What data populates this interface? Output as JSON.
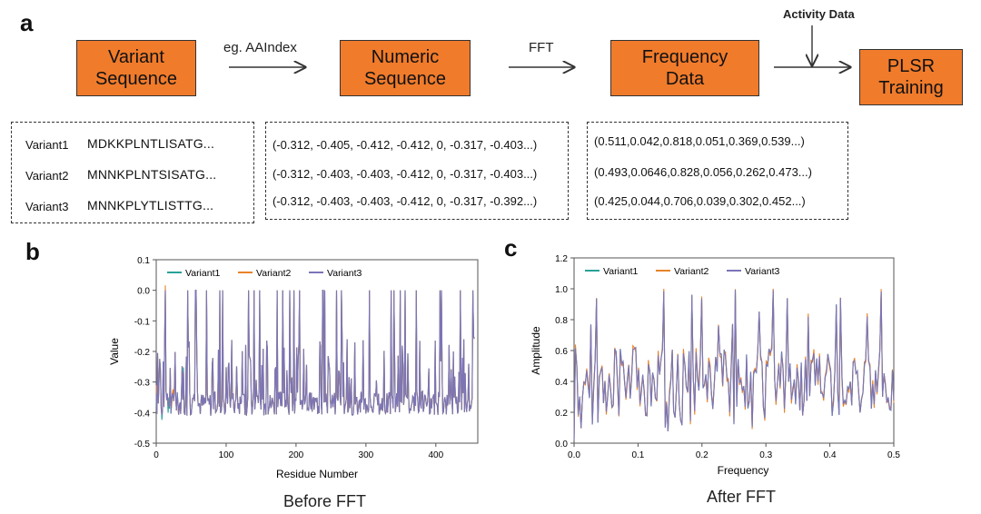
{
  "panels": {
    "a": "a",
    "b": "b",
    "c": "c"
  },
  "flow": {
    "boxes": [
      "Variant\nSequence",
      "Numeric\nSequence",
      "Frequency\nData",
      "PLSR\nTraining"
    ],
    "arrow_labels": [
      "eg. AAIndex",
      "FFT",
      ""
    ],
    "top_label": "Activity Data"
  },
  "sequences": [
    {
      "name": "Variant1",
      "seq": "MDKKPLNTLISATG..."
    },
    {
      "name": "Variant2",
      "seq": "MNNKPLNTSISATG..."
    },
    {
      "name": "Variant3",
      "seq": "MNNKPLYTLISTTG..."
    }
  ],
  "numeric_rows": [
    "(-0.312, -0.405, -0.412, -0.412, 0, -0.317, -0.403...)",
    "(-0.312, -0.403, -0.403, -0.412, 0, -0.317, -0.403...)",
    "(-0.312, -0.403, -0.403, -0.412, 0, -0.317, -0.392...)"
  ],
  "frequency_rows": [
    "(0.511,0.042,0.818,0.051,0.369,0.539...)",
    "(0.493,0.0646,0.828,0.056,0.262,0.473...)",
    "(0.425,0.044,0.706,0.039,0.302,0.452...)"
  ],
  "chart_data": [
    {
      "type": "line",
      "caption": "Before FFT",
      "xlabel": "Residue Number",
      "ylabel": "Value",
      "xlim": [
        0,
        460
      ],
      "ylim": [
        -0.5,
        0.1
      ],
      "xticks": [
        0,
        100,
        200,
        300,
        400
      ],
      "yticks": [
        0.1,
        0.0,
        -0.1,
        -0.2,
        -0.3,
        -0.4,
        -0.5
      ],
      "legend": "top-left",
      "series": [
        {
          "name": "Variant1",
          "color": "#2aa198"
        },
        {
          "name": "Variant2",
          "color": "#e8832a"
        },
        {
          "name": "Variant3",
          "color": "#7b74b8"
        }
      ]
    },
    {
      "type": "line",
      "caption": "After FFT",
      "xlabel": "Frequency",
      "ylabel": "Amplitude",
      "xlim": [
        0,
        0.5
      ],
      "ylim": [
        0,
        1.2
      ],
      "xticks": [
        0.0,
        0.1,
        0.2,
        0.3,
        0.4,
        0.5
      ],
      "yticks": [
        1.2,
        1.0,
        0.8,
        0.6,
        0.4,
        0.2,
        0.0
      ],
      "legend": "top-left",
      "series": [
        {
          "name": "Variant1",
          "color": "#2aa198"
        },
        {
          "name": "Variant2",
          "color": "#e8832a"
        },
        {
          "name": "Variant3",
          "color": "#7b74b8"
        }
      ]
    }
  ]
}
